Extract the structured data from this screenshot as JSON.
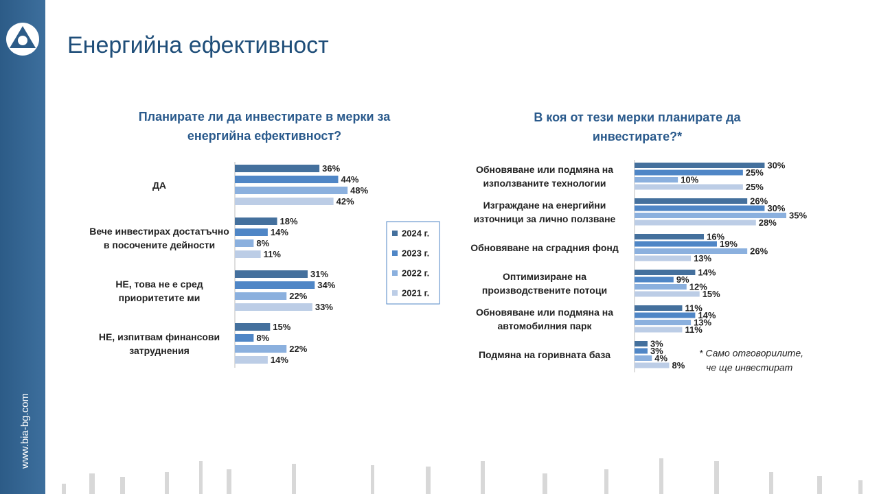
{
  "header": {
    "title": "Енергийна ефективност"
  },
  "sidebar": {
    "url": "www.bia-bg.com"
  },
  "footnote": [
    "* Само отговорилите,",
    "че ще инвестират"
  ],
  "chart_data": [
    {
      "type": "hbar",
      "title": "Планирате ли да инвестирате в мерки за енергийна ефективност?",
      "categories": [
        "ДА",
        "Вече инвестирах достатъчно в посочените дейности",
        "НЕ, това не е сред приоритетите ми",
        "НЕ, изпитвам финансови затруднения"
      ],
      "xlim": [
        0,
        50
      ],
      "legend": "right",
      "series": [
        {
          "name": "2024 г.",
          "color": "#44709d",
          "values": [
            36,
            18,
            31,
            15
          ],
          "value_labels": [
            "36%",
            "18%",
            "31%",
            "15%"
          ]
        },
        {
          "name": "2023 г.",
          "color": "#4f86c6",
          "values": [
            44,
            14,
            34,
            8
          ],
          "value_labels": [
            "44%",
            "14%",
            "34%",
            "8%"
          ]
        },
        {
          "name": "2022 г.",
          "color": "#8bb0de",
          "values": [
            48,
            8,
            22,
            22
          ],
          "value_labels": [
            "48%",
            "8%",
            "22%",
            "22%"
          ]
        },
        {
          "name": "2021 г.",
          "color": "#bccde6",
          "values": [
            42,
            11,
            33,
            14
          ],
          "value_labels": [
            "42%",
            "11%",
            "33%",
            "14%"
          ]
        }
      ]
    },
    {
      "type": "hbar",
      "title": "В коя от тези мерки планирате да инвестирате?*",
      "categories": [
        "Обновяване или подмяна на използваните технологии",
        "Изграждане на енергийни източници за лично ползване",
        "Обновяване на сградния фонд",
        "Оптимизиране на производствените потоци",
        "Обновяване или подмяна на автомобилния парк",
        "Подмяна на горивната база"
      ],
      "xlim": [
        0,
        35
      ],
      "series": [
        {
          "name": "2024 г.",
          "color": "#44709d",
          "values": [
            30,
            26,
            16,
            14,
            11,
            3
          ],
          "value_labels": [
            "30%",
            "26%",
            "16%",
            "14%",
            "11%",
            "3%"
          ]
        },
        {
          "name": "2023 г.",
          "color": "#4f86c6",
          "values": [
            25,
            30,
            19,
            9,
            14,
            3
          ],
          "value_labels": [
            "25%",
            "30%",
            "19%",
            "9%",
            "14%",
            "3%"
          ]
        },
        {
          "name": "2022 г.",
          "color": "#8bb0de",
          "values": [
            10,
            35,
            26,
            12,
            13,
            4
          ],
          "value_labels": [
            "10%",
            "35%",
            "26%",
            "12%",
            "13%",
            "4%"
          ]
        },
        {
          "name": "2021 г.",
          "color": "#bccde6",
          "values": [
            25,
            28,
            13,
            15,
            11,
            8
          ],
          "value_labels": [
            "25%",
            "28%",
            "13%",
            "15%",
            "11%",
            "8%"
          ]
        }
      ]
    }
  ]
}
